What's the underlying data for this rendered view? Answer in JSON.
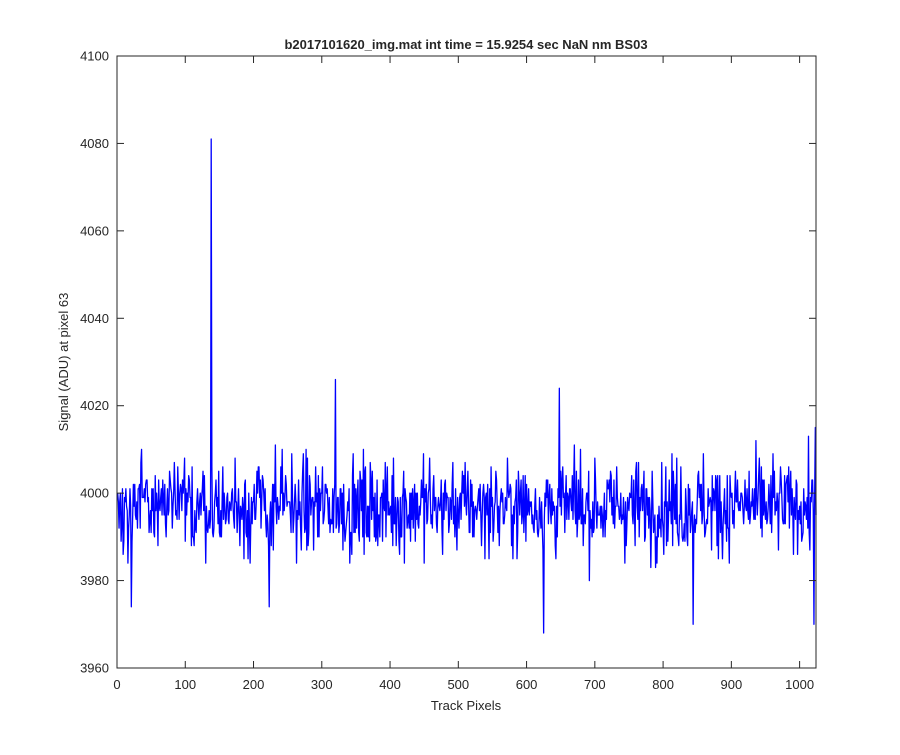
{
  "chart_data": {
    "type": "line",
    "title": "b2017101620_img.mat int time = 15.9254 sec  NaN nm BS03",
    "xlabel": "Track Pixels",
    "ylabel": "Signal (ADU) at pixel 63",
    "xlim": [
      0,
      1024
    ],
    "ylim": [
      3960,
      4100
    ],
    "xticks": [
      0,
      100,
      200,
      300,
      400,
      500,
      600,
      700,
      800,
      900,
      1000
    ],
    "yticks": [
      3960,
      3980,
      4000,
      4020,
      4040,
      4060,
      4080,
      4100
    ],
    "grid": false,
    "box": true,
    "series": [
      {
        "color": "#0000ff",
        "n_points": 1024,
        "baseline": 3997,
        "noise_range": [
          3968,
          4026
        ],
        "notable_points": [
          {
            "x": 137,
            "y": 4081
          },
          {
            "x": 319,
            "y": 4026
          },
          {
            "x": 647,
            "y": 4024
          },
          {
            "x": 624,
            "y": 3968
          },
          {
            "x": 1020,
            "y": 3970
          },
          {
            "x": 843,
            "y": 3970
          },
          {
            "x": 222,
            "y": 3974
          },
          {
            "x": 20,
            "y": 3974
          },
          {
            "x": 1022,
            "y": 4015
          }
        ]
      }
    ]
  }
}
